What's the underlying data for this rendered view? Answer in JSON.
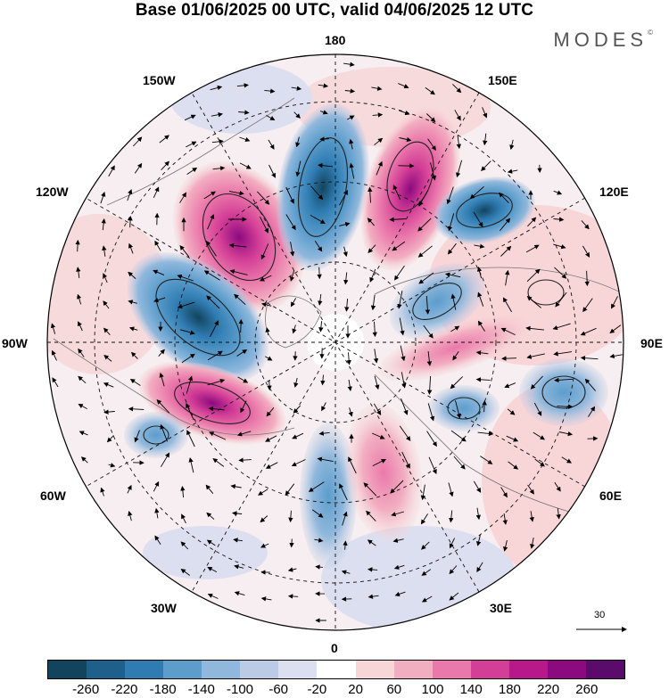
{
  "header": {
    "title": "Base 01/06/2025 00 UTC, valid 04/06/2025 12 UTC",
    "logo": "MODES",
    "logo_mark": "©"
  },
  "map": {
    "projection": "north-polar-stereographic",
    "longitude_labels": {
      "top": "180",
      "bottom": "0",
      "left": "90W",
      "right": "90E",
      "upper_left_1": "150W",
      "upper_left_2": "120W",
      "lower_left_1": "60W",
      "lower_left_2": "30W",
      "upper_right_1": "150E",
      "upper_right_2": "120E",
      "lower_right_1": "60E",
      "lower_right_2": "30E"
    },
    "anomaly_blobs": [
      {
        "sign": "positive",
        "level": 240,
        "region": "north-pacific near 150W"
      },
      {
        "sign": "negative",
        "level": -140,
        "region": "near 180"
      },
      {
        "sign": "positive",
        "level": 240,
        "region": "near 160E"
      },
      {
        "sign": "negative",
        "level": -220,
        "region": "near 130E"
      },
      {
        "sign": "negative",
        "level": -220,
        "region": "north america near 100W"
      },
      {
        "sign": "positive",
        "level": 220,
        "region": "near 70W"
      },
      {
        "sign": "negative",
        "level": -140,
        "region": "north atlantic near 55W"
      },
      {
        "sign": "negative",
        "level": -140,
        "region": "near 0"
      },
      {
        "sign": "positive",
        "level": 200,
        "region": "near 25E"
      },
      {
        "sign": "negative",
        "level": -140,
        "region": "near 60E"
      },
      {
        "sign": "negative",
        "level": -100,
        "region": "near 90E"
      },
      {
        "sign": "positive",
        "level": 100,
        "region": "near 100E"
      },
      {
        "sign": "negative",
        "level": -160,
        "region": "near 105E"
      }
    ]
  },
  "vector_reference": {
    "value": "30"
  },
  "colorbar": {
    "ticks": [
      "-260",
      "-220",
      "-180",
      "-140",
      "-100",
      "-60",
      "-20",
      "20",
      "60",
      "100",
      "140",
      "180",
      "220",
      "260"
    ],
    "colors": [
      "#13445e",
      "#1f5f8b",
      "#2f7cb2",
      "#5c9dcc",
      "#90b8dc",
      "#bccbe5",
      "#dcdff0",
      "#ffffff",
      "#f8d5d7",
      "#f2aec1",
      "#ea79ab",
      "#d33e96",
      "#b8198a",
      "#8c0a7f",
      "#5b0b6b"
    ]
  }
}
